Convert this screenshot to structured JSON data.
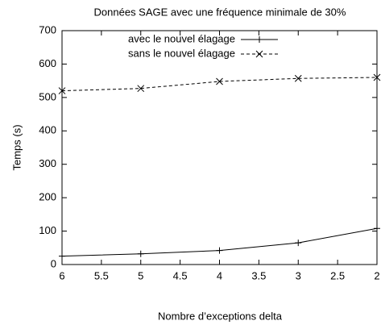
{
  "chart_data": {
    "type": "line",
    "title": "Données SAGE avec une fréquence minimale de 30%",
    "x_label": "Nombre d’exceptions delta",
    "y_label": "Temps (s)",
    "x": [
      6,
      5,
      4,
      3,
      2
    ],
    "series": [
      {
        "name": "avec le nouvel élagage",
        "color": "#000000",
        "dash": false,
        "marker": "plus",
        "values": [
          25,
          32,
          42,
          65,
          108
        ]
      },
      {
        "name": "sans le nouvel élagage",
        "color": "#000000",
        "dash": true,
        "marker": "cross",
        "values": [
          520,
          527,
          548,
          557,
          560
        ]
      }
    ],
    "xlim": [
      6,
      2
    ],
    "xticks": [
      6,
      5.5,
      5,
      4.5,
      4,
      3.5,
      3,
      2.5,
      2
    ],
    "ylim": [
      0,
      700
    ],
    "yticks": [
      0,
      100,
      200,
      300,
      400,
      500,
      600,
      700
    ],
    "legend": "top-left",
    "grid": false
  }
}
